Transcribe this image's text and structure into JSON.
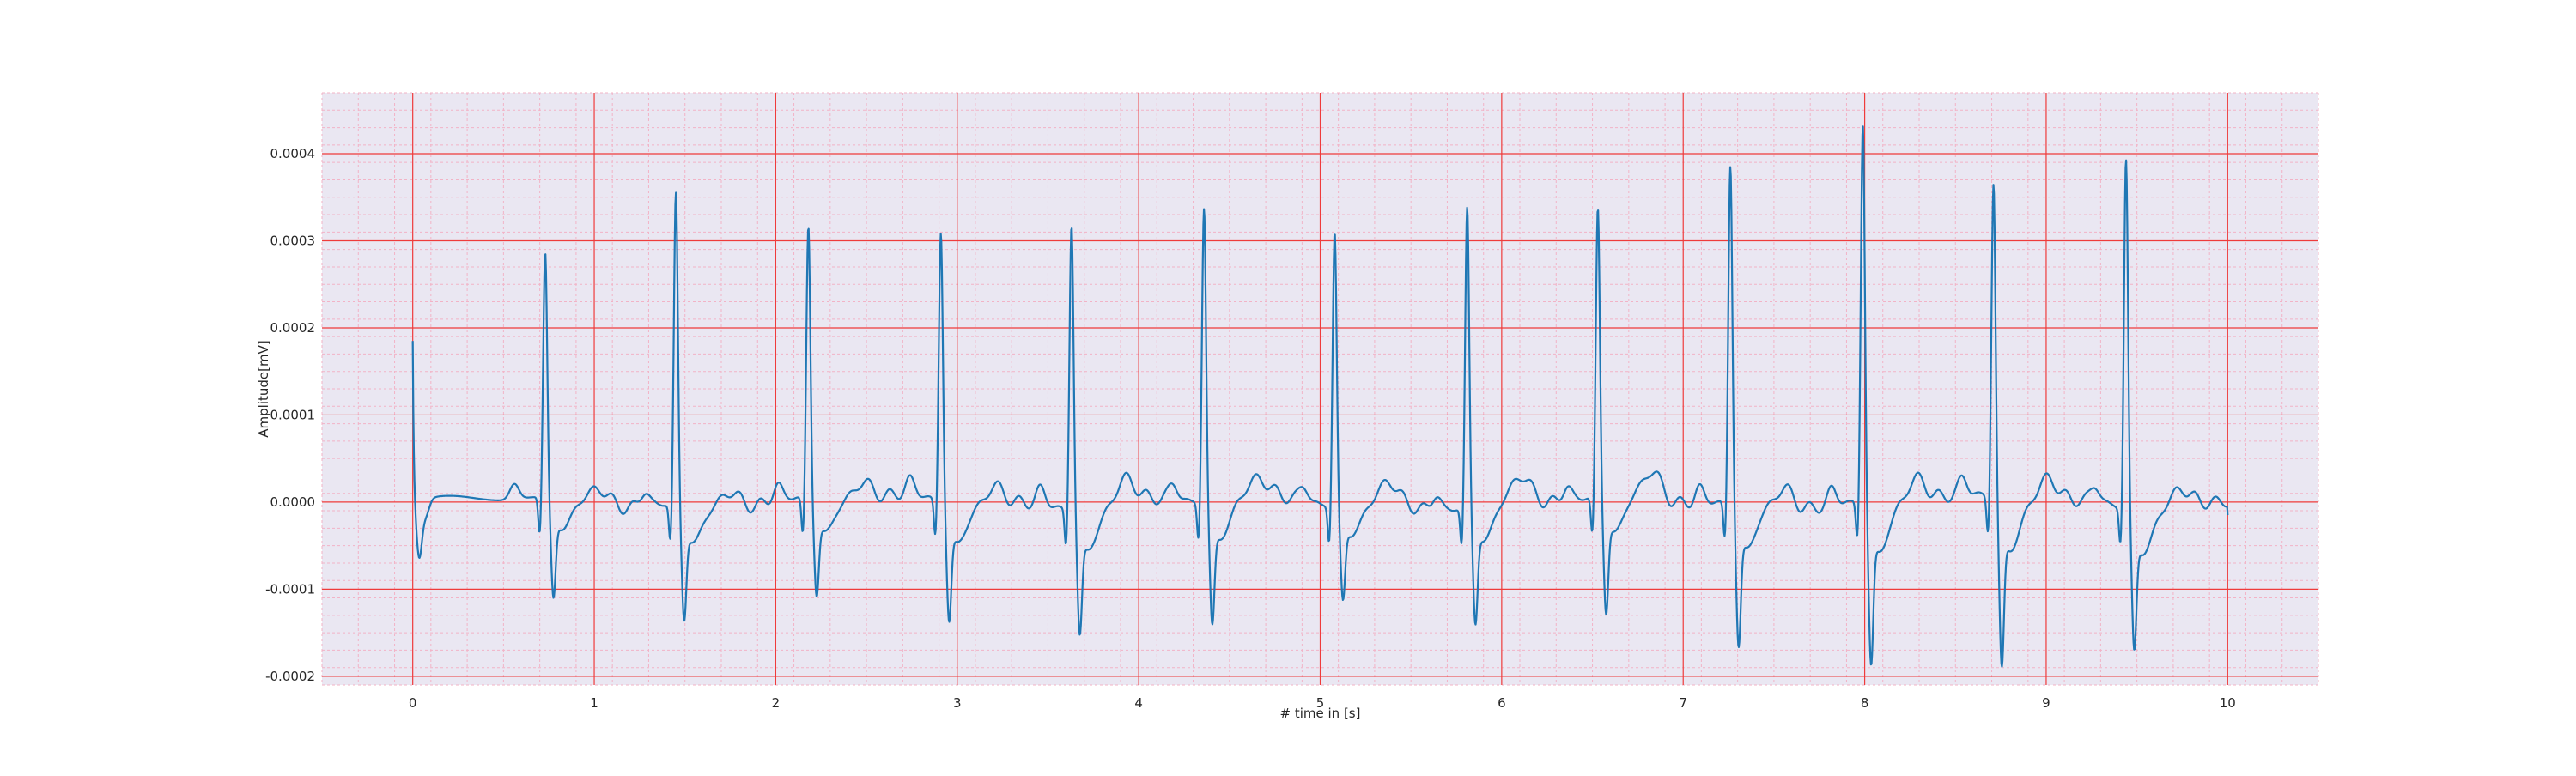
{
  "chart_data": {
    "type": "line",
    "title": "",
    "xlabel": "# time in [s]",
    "ylabel": "Amplitude[mV]",
    "xlim": [
      -0.5,
      10.5
    ],
    "ylim": [
      -0.00021,
      0.00047
    ],
    "x_ticks": [
      0,
      1,
      2,
      3,
      4,
      5,
      6,
      7,
      8,
      9,
      10
    ],
    "x_tick_labels": [
      "0",
      "1",
      "2",
      "3",
      "4",
      "5",
      "6",
      "7",
      "8",
      "9",
      "10"
    ],
    "y_ticks": [
      -0.0002,
      -0.0001,
      0.0,
      0.0001,
      0.0002,
      0.0003,
      0.0004
    ],
    "y_tick_labels": [
      "-0.0002",
      "-0.0001",
      "0.0000",
      "0.0001",
      "0.0002",
      "0.0003",
      "0.0004"
    ],
    "grid": {
      "major": true,
      "minor": true,
      "major_color": "#ef3b3b",
      "minor_color": "#f2b3c6"
    },
    "background_color": "#eae7f2",
    "line_color": "#1f77b4",
    "series": [
      {
        "name": "",
        "start_value": 0.000185,
        "beats": [
          {
            "t": 0.73,
            "r": 0.000287,
            "s": -0.000122,
            "t_wave": 1.8e-05
          },
          {
            "t": 1.45,
            "r": 0.000365,
            "s": -0.000135,
            "t_wave": 2e-05
          },
          {
            "t": 2.18,
            "r": 0.000318,
            "s": -0.000118,
            "t_wave": 2e-05
          },
          {
            "t": 2.91,
            "r": 0.000315,
            "s": -0.000138,
            "t_wave": 2.2e-05
          },
          {
            "t": 3.63,
            "r": 0.000335,
            "s": -0.000143,
            "t_wave": 2.8e-05
          },
          {
            "t": 4.36,
            "r": 0.000345,
            "s": -0.000142,
            "t_wave": 1.8e-05
          },
          {
            "t": 5.08,
            "r": 0.00032,
            "s": -0.000115,
            "t_wave": 2.5e-05
          },
          {
            "t": 5.81,
            "r": 0.000352,
            "s": -0.000138,
            "t_wave": 2.8e-05
          },
          {
            "t": 6.53,
            "r": 0.000338,
            "s": -0.000138,
            "t_wave": 3.2e-05
          },
          {
            "t": 7.26,
            "r": 0.000395,
            "s": -0.000162,
            "t_wave": 2.5e-05
          },
          {
            "t": 7.99,
            "r": 0.000443,
            "s": -0.00018,
            "t_wave": 2.8e-05
          },
          {
            "t": 8.71,
            "r": 0.00037,
            "s": -0.000185,
            "t_wave": 2.8e-05
          },
          {
            "t": 9.44,
            "r": 0.00041,
            "s": -0.000158,
            "t_wave": 2e-05
          }
        ],
        "end_time": 10.0,
        "end_value": -1.5e-05
      }
    ]
  }
}
